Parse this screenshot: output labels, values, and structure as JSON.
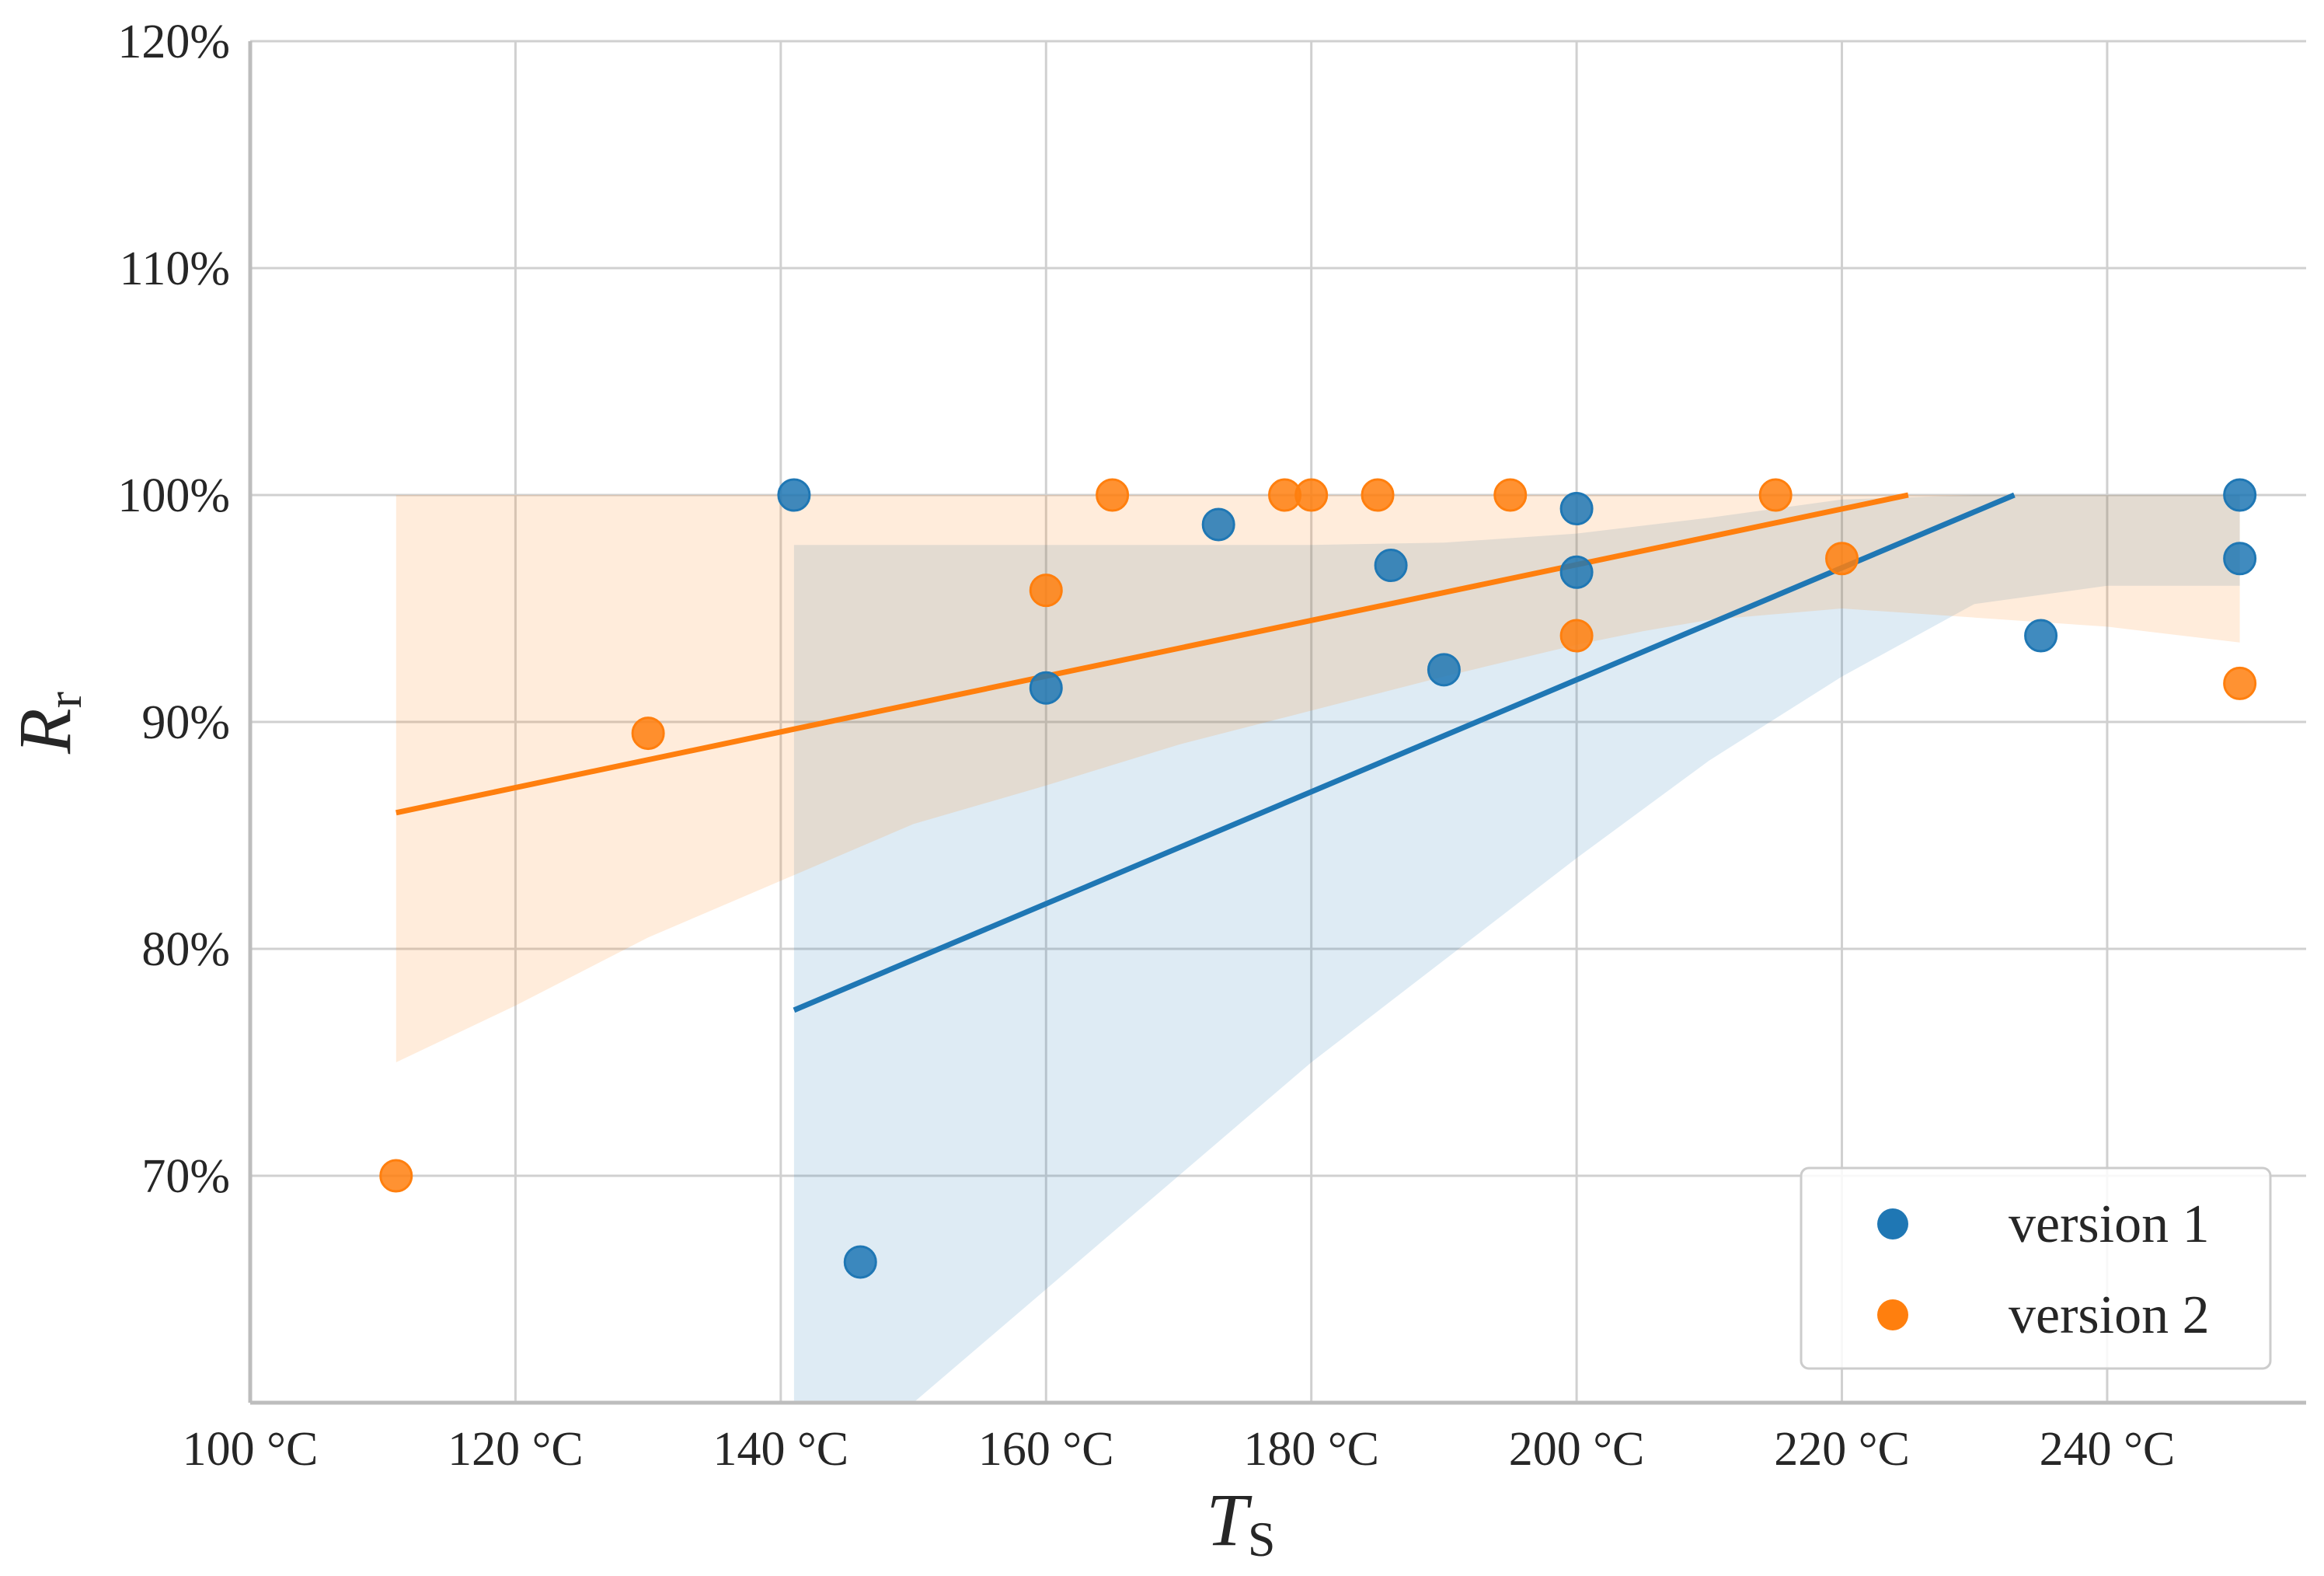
{
  "chart_data": {
    "type": "scatter",
    "title": "",
    "xlabel": "T",
    "xlabel_sub": "S",
    "ylabel": "R",
    "ylabel_sub": "r",
    "xlim": [
      100,
      255
    ],
    "ylim": [
      60,
      120
    ],
    "x_ticks": [
      100,
      120,
      140,
      160,
      180,
      200,
      220,
      240
    ],
    "x_tick_labels": [
      "100 °C",
      "120 °C",
      "140 °C",
      "160 °C",
      "180 °C",
      "200 °C",
      "220 °C",
      "240 °C"
    ],
    "y_ticks": [
      70,
      80,
      90,
      100,
      110,
      120
    ],
    "y_tick_labels": [
      "70%",
      "80%",
      "90%",
      "100%",
      "110%",
      "120%"
    ],
    "grid": true,
    "legend_position": "bottom-right",
    "series": [
      {
        "name": "version 1",
        "color": "#1f77b4",
        "points": [
          [
            141,
            100
          ],
          [
            146,
            66.2
          ],
          [
            160,
            91.5
          ],
          [
            173,
            98.7
          ],
          [
            186,
            96.9
          ],
          [
            190,
            92.3
          ],
          [
            200,
            99.4
          ],
          [
            200,
            96.6
          ],
          [
            235,
            93.8
          ],
          [
            250,
            100
          ],
          [
            250,
            97.2
          ]
        ],
        "fit_line": [
          [
            141,
            77.3
          ],
          [
            233,
            100
          ]
        ],
        "band": {
          "x": [
            141,
            150,
            160,
            170,
            180,
            190,
            200,
            210,
            220,
            230,
            240,
            250
          ],
          "upper": [
            97.8,
            97.8,
            97.8,
            97.8,
            97.8,
            97.9,
            98.3,
            99.0,
            99.8,
            100,
            100,
            100
          ],
          "lower": [
            50,
            60,
            65,
            70,
            75,
            79.5,
            84,
            88.3,
            92,
            95.2,
            96,
            96
          ]
        }
      },
      {
        "name": "version 2",
        "color": "#ff7f0e",
        "points": [
          [
            111,
            70
          ],
          [
            130,
            89.5
          ],
          [
            160,
            95.8
          ],
          [
            165,
            100
          ],
          [
            178,
            100
          ],
          [
            180,
            100
          ],
          [
            185,
            100
          ],
          [
            195,
            100
          ],
          [
            200,
            93.8
          ],
          [
            215,
            100
          ],
          [
            220,
            97.2
          ],
          [
            250,
            91.7
          ]
        ],
        "fit_line": [
          [
            111,
            86
          ],
          [
            225,
            100
          ]
        ],
        "band": {
          "x": [
            111,
            120,
            130,
            140,
            150,
            160,
            170,
            180,
            190,
            200,
            205,
            210,
            220,
            230,
            240,
            250
          ],
          "upper": [
            100,
            100,
            100,
            100,
            100,
            100,
            100,
            100,
            100,
            100,
            100,
            100,
            100,
            100,
            100,
            100
          ],
          "lower": [
            75,
            77.5,
            80.5,
            83,
            85.5,
            87.2,
            89,
            90.5,
            92,
            93.4,
            94,
            94.5,
            95,
            94.6,
            94.2,
            93.5
          ]
        }
      }
    ]
  }
}
